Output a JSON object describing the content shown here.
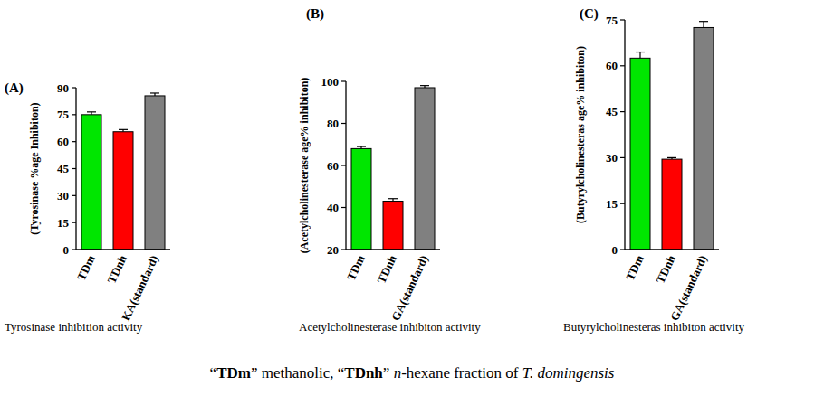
{
  "chart_data": [
    {
      "type": "bar",
      "title": "(A)",
      "xlabel": "Tyrosinase inhibition activity",
      "ylabel": "(Tyrosinase %age Inhibiton)",
      "categories": [
        "TDm",
        "TDnh",
        "KA(standard)"
      ],
      "values": [
        75,
        65.5,
        85.5
      ],
      "errors": [
        1.5,
        1.2,
        1.5
      ],
      "colors": [
        "#00e600",
        "#ff0000",
        "#808080"
      ],
      "ylim": [
        0,
        90
      ],
      "yticks": [
        0,
        15,
        30,
        45,
        60,
        75,
        90
      ]
    },
    {
      "type": "bar",
      "title": "(B)",
      "xlabel": "Acetylcholinesterase inhibiton activity",
      "ylabel": "(Acetylcholinesterase age% inhibiton)",
      "categories": [
        "TDm",
        "TDnh",
        "GA(standard)"
      ],
      "values": [
        68,
        43,
        97
      ],
      "errors": [
        1,
        1.2,
        1
      ],
      "colors": [
        "#00e600",
        "#ff0000",
        "#808080"
      ],
      "ylim": [
        20,
        100
      ],
      "yticks": [
        20,
        40,
        60,
        80,
        100
      ]
    },
    {
      "type": "bar",
      "title": "(C)",
      "xlabel": "Butyrylcholinesteras inhibiton activity",
      "ylabel": "(Butyrylcholinesteras age% inhibiton)",
      "categories": [
        "TDm",
        "TDnh",
        "GA(standard)"
      ],
      "values": [
        62.5,
        29.5,
        72.5
      ],
      "errors": [
        2,
        0.5,
        2
      ],
      "colors": [
        "#00e600",
        "#ff0000",
        "#808080"
      ],
      "ylim": [
        0,
        75
      ],
      "yticks": [
        0,
        15,
        30,
        45,
        60,
        75
      ]
    }
  ],
  "caption": [
    {
      "text": "“",
      "style": "normal"
    },
    {
      "text": "TDm",
      "style": "bold"
    },
    {
      "text": "” methanolic, “",
      "style": "normal"
    },
    {
      "text": "TDnh",
      "style": "bold"
    },
    {
      "text": "” ",
      "style": "normal"
    },
    {
      "text": "n",
      "style": "italic"
    },
    {
      "text": "-hexane fraction of ",
      "style": "normal"
    },
    {
      "text": "T. domingensis",
      "style": "italic"
    }
  ]
}
